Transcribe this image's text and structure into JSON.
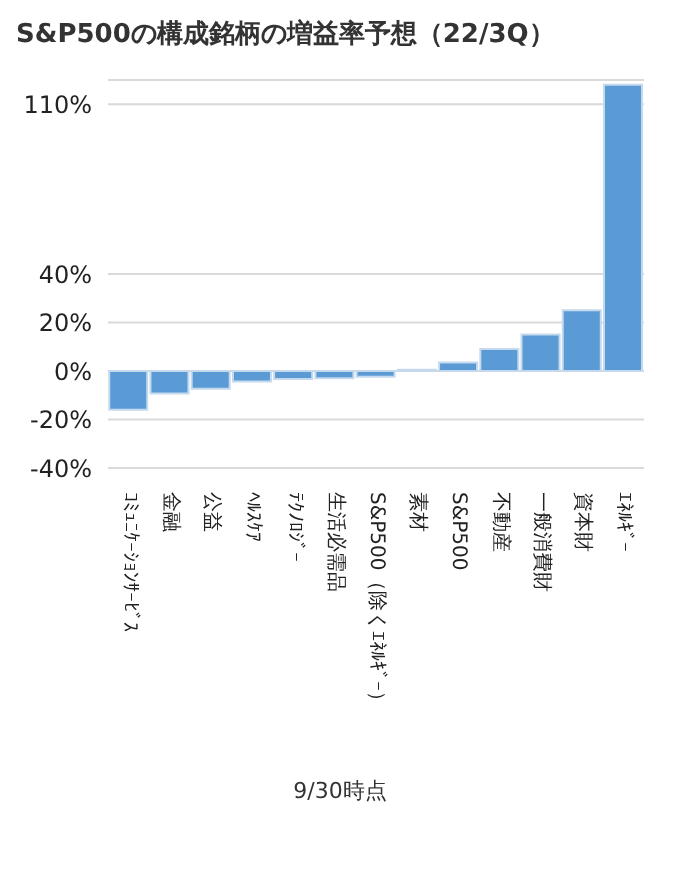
{
  "chart_data": {
    "type": "bar",
    "title": "S&P500の構成銘柄の増益率予想（22/3Q）",
    "categories": [
      "ｺﾐｭﾆｹｰｼｮﾝｻｰﾋﾞｽ",
      "金融",
      "公益",
      "ﾍﾙｽｹｱ",
      "ﾃｸﾉﾛｼﾞｰ",
      "生活必需品",
      "S&P500（除くｴﾈﾙｷﾞｰ）",
      "素材",
      "S&P500",
      "不動産",
      "一般消費財",
      "資本財",
      "ｴﾈﾙｷﾞｰ"
    ],
    "values": [
      -16,
      -9.3,
      -7.3,
      -4.3,
      -3.3,
      -3,
      -2.4,
      0.5,
      3.5,
      9.1,
      15.1,
      25.1,
      118
    ],
    "color": "#5b9bd5",
    "ylim": [
      -40,
      120
    ],
    "yticks": [
      {
        "value": -40,
        "label": "-40%"
      },
      {
        "value": -20,
        "label": "-20%"
      },
      {
        "value": 0,
        "label": "0%"
      },
      {
        "value": 20,
        "label": "20%"
      },
      {
        "value": 40,
        "label": "40%"
      },
      {
        "value": 110,
        "label": "110%"
      }
    ],
    "grid": "y",
    "annotations": [
      "9/30時点"
    ]
  }
}
